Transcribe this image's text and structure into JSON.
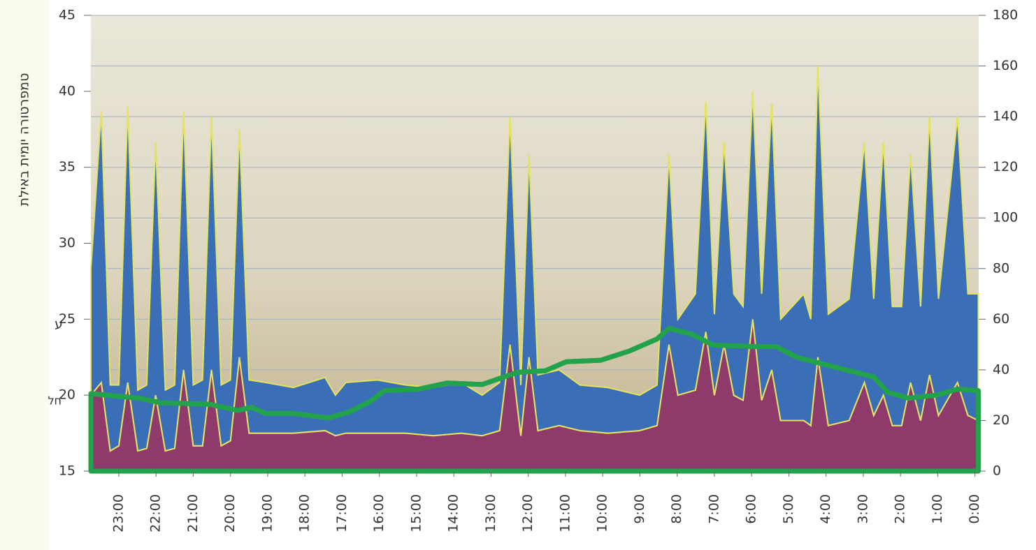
{
  "chart_data": {
    "type": "stacked-area-line",
    "y_label": "טמפרטורה יומית באילת",
    "annotations": [
      "ע",
      "חל"
    ],
    "xlim": [
      23.75,
      -0.1
    ],
    "xticks": [
      {
        "value": 23,
        "label": "23:00"
      },
      {
        "value": 22,
        "label": "22:00"
      },
      {
        "value": 21,
        "label": "21:00"
      },
      {
        "value": 20,
        "label": "20:00"
      },
      {
        "value": 19,
        "label": "19:00"
      },
      {
        "value": 18,
        "label": "18:00"
      },
      {
        "value": 17,
        "label": "17:00"
      },
      {
        "value": 16,
        "label": "16:00"
      },
      {
        "value": 15,
        "label": "15:00"
      },
      {
        "value": 14,
        "label": "14:00"
      },
      {
        "value": 13,
        "label": "13:00"
      },
      {
        "value": 12,
        "label": "12:00"
      },
      {
        "value": 11,
        "label": "11:00"
      },
      {
        "value": 10,
        "label": "10:00"
      },
      {
        "value": 9,
        "label": "9:00"
      },
      {
        "value": 8,
        "label": "8:00"
      },
      {
        "value": 7,
        "label": "7:00"
      },
      {
        "value": 6,
        "label": "6:00"
      },
      {
        "value": 5,
        "label": "5:00"
      },
      {
        "value": 4,
        "label": "4:00"
      },
      {
        "value": 3,
        "label": "3:00"
      },
      {
        "value": 2,
        "label": "2:00"
      },
      {
        "value": 1,
        "label": "1:00"
      },
      {
        "value": 0,
        "label": "0:00"
      }
    ],
    "ylim": [
      15,
      45
    ],
    "yticks": [
      15,
      20,
      25,
      30,
      35,
      40,
      45
    ],
    "y2lim": [
      0,
      180
    ],
    "y2ticks": [
      0,
      20,
      40,
      60,
      80,
      100,
      120,
      140,
      160,
      180
    ],
    "grid": true,
    "x": [
      23.75,
      23.47,
      23.23,
      23.0,
      22.76,
      22.49,
      22.25,
      22.01,
      21.75,
      21.5,
      21.26,
      21.0,
      20.75,
      20.51,
      20.25,
      20.0,
      19.76,
      19.5,
      19.06,
      18.31,
      17.46,
      17.18,
      16.9,
      16.05,
      15.3,
      14.55,
      13.8,
      13.24,
      12.77,
      12.49,
      12.2,
      11.98,
      11.74,
      11.17,
      10.61,
      9.86,
      9.01,
      8.54,
      8.22,
      7.98,
      7.51,
      7.23,
      7.0,
      6.74,
      6.48,
      6.23,
      5.97,
      5.73,
      5.46,
      5.22,
      4.6,
      4.41,
      4.22,
      3.94,
      3.38,
      2.97,
      2.72,
      2.46,
      2.22,
      1.97,
      1.73,
      1.46,
      1.22,
      0.98,
      0.47,
      0.19,
      -0.09
    ],
    "series": [
      {
        "color": "#8e3b6b",
        "axis": "y2",
        "values": [
          30,
          35,
          8,
          10,
          35,
          8,
          9,
          30,
          8,
          9,
          40,
          10,
          10,
          40,
          10,
          12,
          45,
          15,
          15,
          15,
          16,
          14,
          15,
          15,
          15,
          14,
          15,
          14,
          16,
          50,
          14,
          45,
          16,
          18,
          16,
          15,
          16,
          18,
          50,
          30,
          32,
          55,
          30,
          50,
          30,
          28,
          60,
          28,
          40,
          20,
          20,
          18,
          45,
          18,
          20,
          35,
          22,
          30,
          18,
          18,
          35,
          20,
          38,
          22,
          35,
          22,
          20
        ]
      },
      {
        "color": "#3a6fb8",
        "axis": "y2",
        "values": [
          50,
          107,
          26,
          24,
          109,
          24,
          25,
          100,
          24,
          25,
          102,
          24,
          26,
          100,
          24,
          24,
          90,
          21,
          20,
          18,
          21,
          16,
          20,
          21,
          19,
          19,
          20,
          16,
          19,
          90,
          20,
          80,
          22,
          22,
          18,
          18,
          14,
          16,
          75,
          30,
          38,
          91,
          32,
          80,
          40,
          37,
          90,
          42,
          105,
          40,
          50,
          42,
          115,
          44,
          48,
          95,
          46,
          100,
          47,
          47,
          90,
          45,
          102,
          46,
          105,
          48,
          50
        ]
      },
      {
        "color": "#22a24a",
        "axis": "y",
        "x": [
          23.75,
          22.44,
          21.87,
          20.56,
          19.81,
          19.43,
          19.06,
          18.31,
          17.37,
          16.8,
          16.24,
          15.87,
          14.93,
          14.18,
          13.24,
          12.3,
          11.55,
          10.98,
          10.05,
          9.29,
          8.54,
          8.22,
          7.6,
          7.04,
          5.91,
          5.35,
          4.79,
          3.85,
          2.72,
          2.35,
          1.78,
          1.03,
          0.47,
          -0.09
        ],
        "values": [
          20.1,
          19.8,
          19.5,
          19.4,
          19.0,
          19.2,
          18.8,
          18.8,
          18.5,
          18.9,
          19.6,
          20.3,
          20.4,
          20.8,
          20.7,
          21.5,
          21.6,
          22.2,
          22.3,
          22.9,
          23.7,
          24.4,
          24.0,
          23.3,
          23.2,
          23.2,
          22.5,
          21.9,
          21.2,
          20.2,
          19.8,
          20.0,
          20.4,
          20.3
        ]
      }
    ]
  }
}
